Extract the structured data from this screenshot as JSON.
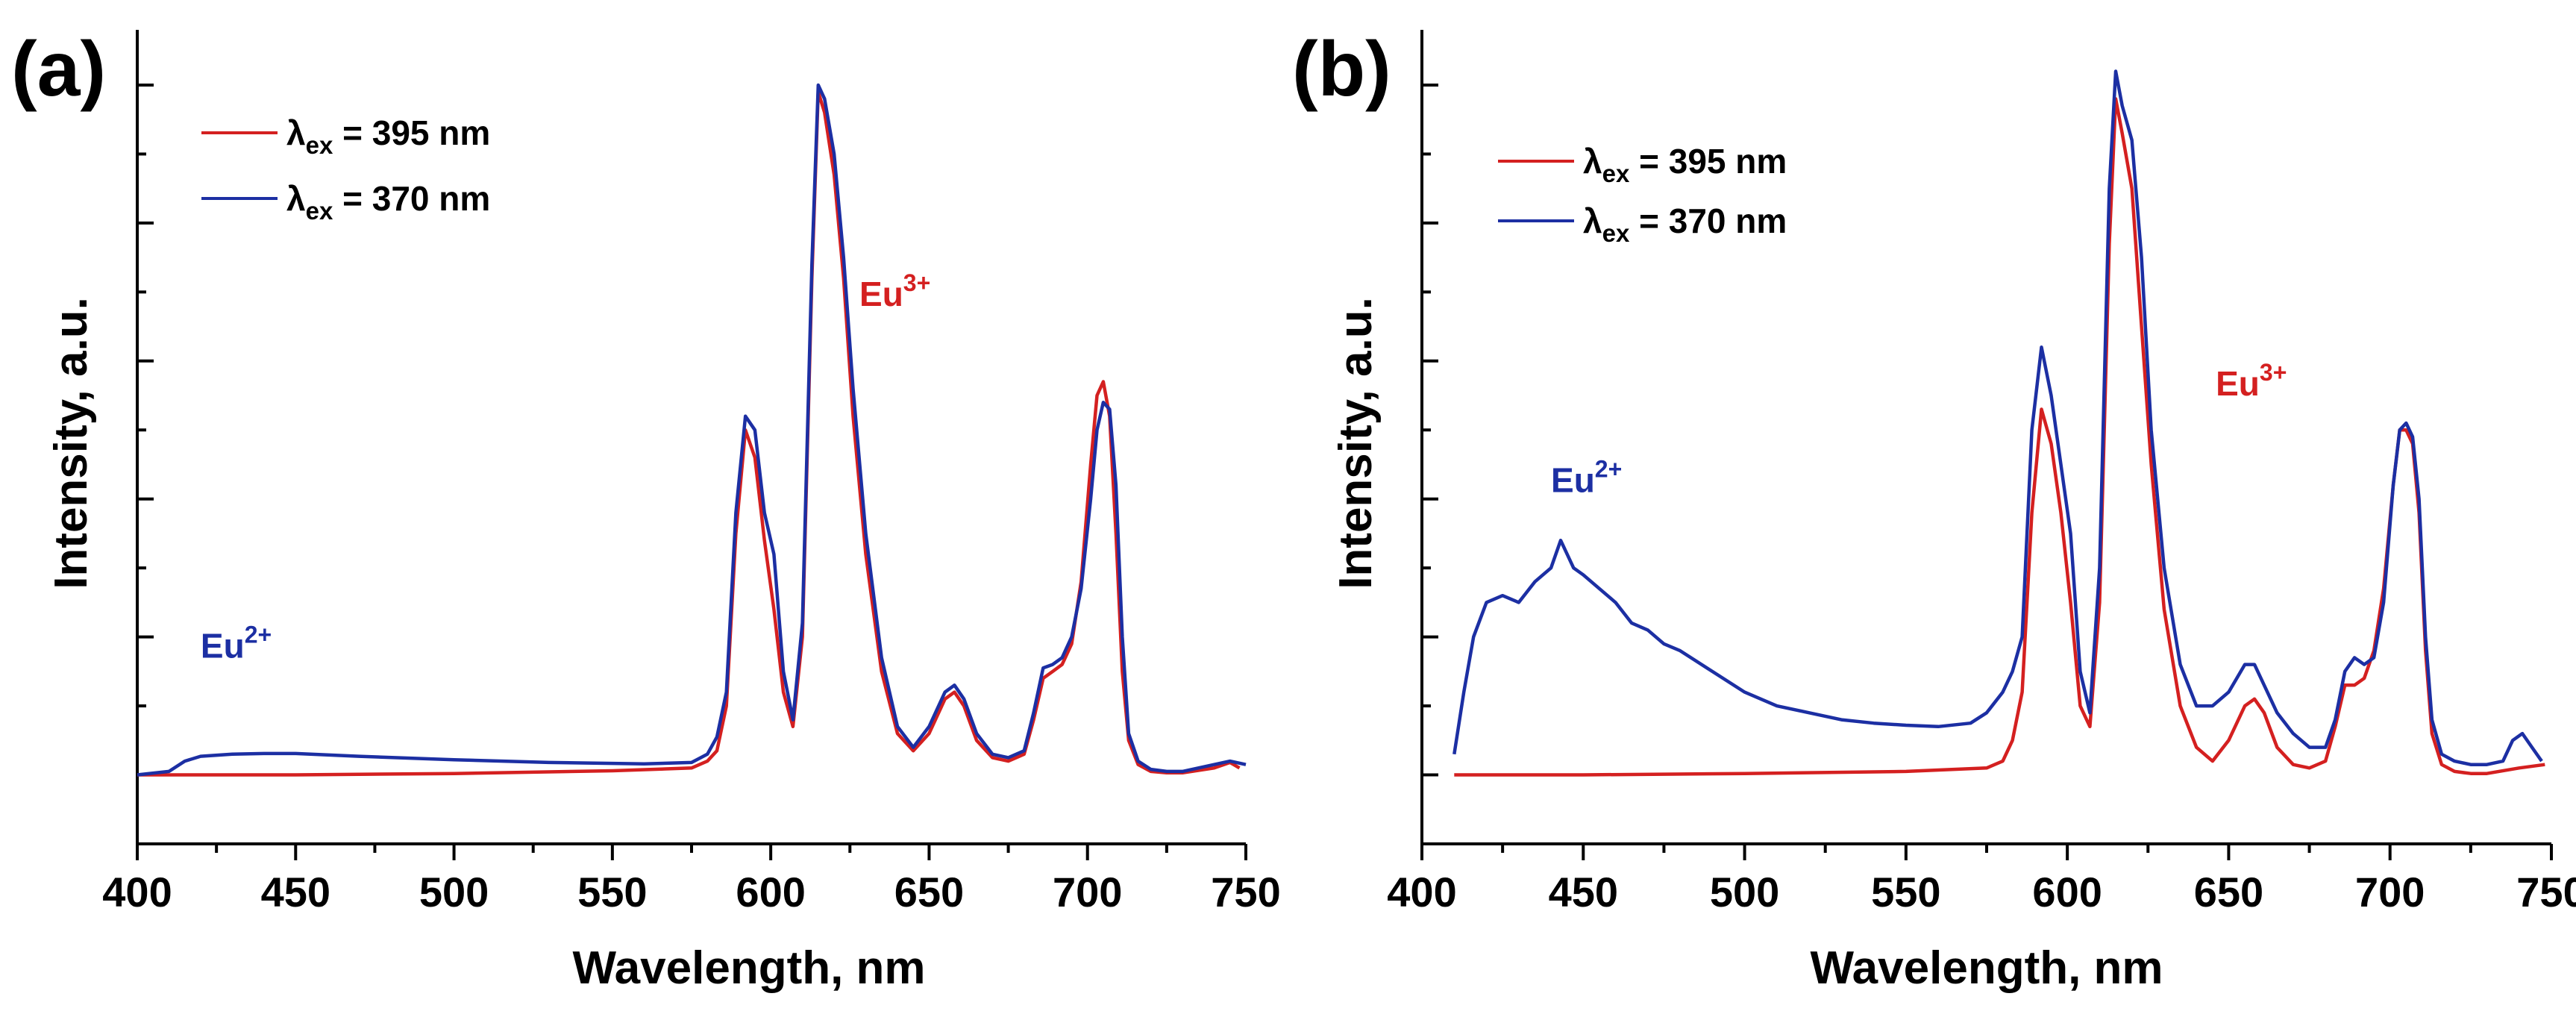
{
  "colors": {
    "red": "#d42020",
    "blue": "#1c2fa3",
    "axis": "#000000"
  },
  "chart_data": [
    {
      "panel": "(a)",
      "type": "line",
      "xlabel": "Wavelength, nm",
      "ylabel": "Intensity, a.u.",
      "xlim": [
        400,
        750
      ],
      "ylim": [
        -0.1,
        1.08
      ],
      "xticks": [
        400,
        450,
        500,
        550,
        600,
        650,
        700,
        750
      ],
      "legend_position": "top-left",
      "annotations": [
        {
          "base": "Eu",
          "sup": "3+",
          "color": "red",
          "x": 628,
          "y": 0.68
        },
        {
          "base": "Eu",
          "sup": "2+",
          "color": "blue",
          "x": 420,
          "y": 0.17
        }
      ],
      "series": [
        {
          "name": "λex = 395 nm",
          "lambda": "λ",
          "sub": "ex",
          "rest": " = 395 nm",
          "color": "red",
          "x": [
            400,
            420,
            450,
            500,
            550,
            575,
            580,
            583,
            586,
            589,
            592,
            595,
            598,
            601,
            604,
            607,
            610,
            613,
            615,
            617,
            620,
            623,
            626,
            630,
            635,
            640,
            645,
            650,
            655,
            658,
            661,
            665,
            670,
            675,
            680,
            683,
            686,
            689,
            692,
            695,
            698,
            701,
            703,
            705,
            707,
            709,
            711,
            713,
            716,
            720,
            725,
            730,
            740,
            745,
            748
          ],
          "values": [
            0.0,
            0.0,
            0.0,
            0.002,
            0.006,
            0.01,
            0.02,
            0.035,
            0.1,
            0.35,
            0.5,
            0.46,
            0.34,
            0.24,
            0.12,
            0.07,
            0.2,
            0.72,
            0.99,
            0.96,
            0.87,
            0.72,
            0.52,
            0.32,
            0.15,
            0.06,
            0.035,
            0.06,
            0.11,
            0.12,
            0.1,
            0.05,
            0.025,
            0.02,
            0.03,
            0.08,
            0.14,
            0.15,
            0.16,
            0.19,
            0.28,
            0.45,
            0.55,
            0.57,
            0.52,
            0.35,
            0.15,
            0.05,
            0.015,
            0.005,
            0.003,
            0.003,
            0.01,
            0.018,
            0.01
          ]
        },
        {
          "name": "λex = 370 nm",
          "lambda": "λ",
          "sub": "ex",
          "rest": " = 370 nm",
          "color": "blue",
          "x": [
            400,
            410,
            415,
            420,
            430,
            440,
            450,
            470,
            500,
            530,
            560,
            575,
            580,
            583,
            586,
            589,
            592,
            595,
            598,
            601,
            604,
            607,
            610,
            613,
            615,
            617,
            620,
            623,
            626,
            630,
            635,
            640,
            645,
            650,
            655,
            658,
            661,
            665,
            670,
            675,
            680,
            683,
            686,
            689,
            692,
            695,
            698,
            701,
            703,
            705,
            707,
            709,
            711,
            713,
            716,
            720,
            725,
            730,
            740,
            745,
            750
          ],
          "values": [
            0.0,
            0.005,
            0.02,
            0.027,
            0.03,
            0.031,
            0.031,
            0.027,
            0.022,
            0.018,
            0.016,
            0.018,
            0.03,
            0.055,
            0.12,
            0.38,
            0.52,
            0.5,
            0.38,
            0.32,
            0.15,
            0.08,
            0.22,
            0.74,
            1.0,
            0.98,
            0.9,
            0.75,
            0.56,
            0.35,
            0.17,
            0.07,
            0.04,
            0.07,
            0.12,
            0.13,
            0.11,
            0.06,
            0.03,
            0.025,
            0.035,
            0.09,
            0.155,
            0.16,
            0.17,
            0.2,
            0.27,
            0.4,
            0.5,
            0.54,
            0.53,
            0.42,
            0.2,
            0.06,
            0.02,
            0.008,
            0.005,
            0.005,
            0.015,
            0.02,
            0.015
          ]
        }
      ]
    },
    {
      "panel": "(b)",
      "type": "line",
      "xlabel": "Wavelength, nm",
      "ylabel": "Intensity, a.u.",
      "xlim": [
        400,
        750
      ],
      "ylim": [
        -0.1,
        1.08
      ],
      "xticks": [
        400,
        450,
        500,
        550,
        600,
        650,
        700,
        750
      ],
      "legend_position": "top-left",
      "annotations": [
        {
          "base": "Eu",
          "sup": "3+",
          "color": "red",
          "x": 646,
          "y": 0.55
        },
        {
          "base": "Eu",
          "sup": "2+",
          "color": "blue",
          "x": 440,
          "y": 0.41
        }
      ],
      "series": [
        {
          "name": "λex = 395 nm",
          "lambda": "λ",
          "sub": "ex",
          "rest": " = 395 nm",
          "color": "red",
          "x": [
            410,
            450,
            500,
            550,
            575,
            580,
            583,
            586,
            589,
            592,
            595,
            598,
            601,
            604,
            607,
            610,
            613,
            615,
            617,
            620,
            623,
            626,
            630,
            635,
            640,
            645,
            650,
            655,
            658,
            661,
            665,
            670,
            675,
            680,
            683,
            686,
            689,
            692,
            695,
            698,
            701,
            703,
            705,
            707,
            709,
            711,
            713,
            716,
            720,
            725,
            730,
            740,
            748
          ],
          "values": [
            0.0,
            0.0,
            0.002,
            0.005,
            0.01,
            0.02,
            0.05,
            0.12,
            0.38,
            0.53,
            0.48,
            0.38,
            0.25,
            0.1,
            0.07,
            0.25,
            0.77,
            0.98,
            0.93,
            0.85,
            0.65,
            0.45,
            0.24,
            0.1,
            0.04,
            0.02,
            0.05,
            0.1,
            0.11,
            0.09,
            0.04,
            0.015,
            0.01,
            0.02,
            0.07,
            0.13,
            0.13,
            0.14,
            0.18,
            0.27,
            0.42,
            0.5,
            0.5,
            0.48,
            0.38,
            0.18,
            0.06,
            0.015,
            0.005,
            0.002,
            0.002,
            0.01,
            0.015
          ]
        },
        {
          "name": "λex = 370 nm",
          "lambda": "λ",
          "sub": "ex",
          "rest": " = 370 nm",
          "color": "blue",
          "x": [
            410,
            413,
            416,
            420,
            425,
            430,
            435,
            440,
            443,
            447,
            450,
            455,
            460,
            465,
            470,
            475,
            480,
            490,
            500,
            510,
            520,
            530,
            540,
            550,
            560,
            570,
            575,
            580,
            583,
            586,
            589,
            592,
            595,
            598,
            601,
            604,
            607,
            610,
            613,
            615,
            617,
            620,
            623,
            626,
            630,
            635,
            640,
            645,
            650,
            655,
            658,
            661,
            665,
            670,
            675,
            680,
            683,
            686,
            689,
            692,
            695,
            698,
            701,
            703,
            705,
            707,
            709,
            711,
            713,
            716,
            720,
            725,
            730,
            735,
            738,
            741,
            744,
            747
          ],
          "values": [
            0.03,
            0.12,
            0.2,
            0.25,
            0.26,
            0.25,
            0.28,
            0.3,
            0.34,
            0.3,
            0.29,
            0.27,
            0.25,
            0.22,
            0.21,
            0.19,
            0.18,
            0.15,
            0.12,
            0.1,
            0.09,
            0.08,
            0.075,
            0.072,
            0.07,
            0.075,
            0.09,
            0.12,
            0.15,
            0.2,
            0.5,
            0.62,
            0.55,
            0.45,
            0.35,
            0.15,
            0.09,
            0.3,
            0.85,
            1.02,
            0.97,
            0.92,
            0.75,
            0.5,
            0.3,
            0.16,
            0.1,
            0.1,
            0.12,
            0.16,
            0.16,
            0.13,
            0.09,
            0.06,
            0.04,
            0.04,
            0.08,
            0.15,
            0.17,
            0.16,
            0.17,
            0.25,
            0.42,
            0.5,
            0.51,
            0.49,
            0.4,
            0.2,
            0.08,
            0.03,
            0.02,
            0.015,
            0.015,
            0.02,
            0.05,
            0.06,
            0.04,
            0.02
          ]
        }
      ]
    }
  ]
}
